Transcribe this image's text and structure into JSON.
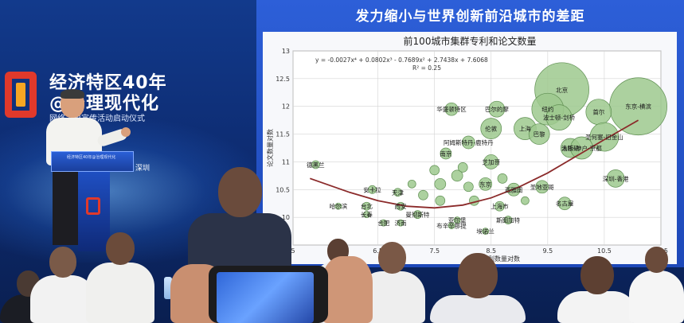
{
  "event": {
    "line1": "经济特区40年",
    "line2": "@治理现代化",
    "line3": "网络主题宣传活动启动仪式",
    "podium_label": "经济特区40年@治理现代化",
    "city": "深圳",
    "colors": {
      "brand_red": "#e0392b",
      "brand_orange": "#f6a623",
      "stage_blue": "#123a8c"
    }
  },
  "slide": {
    "title": "发力缩小与世界创新前沿城市的差距"
  },
  "chart_data": {
    "type": "scatter",
    "title": "前100城市集群专利和论文数量",
    "xlabel": "专利数量对数",
    "ylabel": "论文数量对数",
    "equation": "y = -0.0027x⁴ + 0.0802x³ - 0.7689x² + 2.7438x + 7.6068",
    "r2": "R² = 0.25",
    "xlim": [
      5,
      11.5
    ],
    "ylim": [
      9.5,
      13
    ],
    "xticks": [
      5,
      6.5,
      7.5,
      8.5,
      9.5,
      10.5,
      11.5
    ],
    "xtick_labels": [
      "5",
      "6.5",
      "7.5",
      "8.5",
      "9.5",
      "10.5",
      "11.5"
    ],
    "yticks": [
      9.5,
      10,
      10.5,
      11,
      11.5,
      12,
      12.5,
      13
    ],
    "ytick_labels": [
      "",
      "10",
      "10.5",
      "11",
      "11.5",
      "12",
      "12.5",
      "13"
    ],
    "grid": true,
    "bubble_color": "#9ec98e",
    "trend_color": "#8b2a2a",
    "trend": [
      {
        "x": 5.3,
        "y": 10.7
      },
      {
        "x": 6.0,
        "y": 10.45
      },
      {
        "x": 6.5,
        "y": 10.3
      },
      {
        "x": 7.0,
        "y": 10.2
      },
      {
        "x": 7.5,
        "y": 10.17
      },
      {
        "x": 8.0,
        "y": 10.22
      },
      {
        "x": 8.5,
        "y": 10.35
      },
      {
        "x": 9.0,
        "y": 10.55
      },
      {
        "x": 9.5,
        "y": 10.8
      },
      {
        "x": 10.0,
        "y": 11.1
      },
      {
        "x": 10.5,
        "y": 11.4
      },
      {
        "x": 11.1,
        "y": 11.75
      }
    ],
    "points": [
      {
        "label": "北京",
        "x": 9.75,
        "y": 12.3,
        "size": 34
      },
      {
        "label": "东京-横滨",
        "x": 11.1,
        "y": 12.0,
        "size": 36
      },
      {
        "label": "纽约",
        "x": 9.5,
        "y": 11.95,
        "size": 20
      },
      {
        "label": "首尔",
        "x": 10.4,
        "y": 11.9,
        "size": 16
      },
      {
        "label": "华盛顿特区",
        "x": 7.8,
        "y": 11.95,
        "size": 8
      },
      {
        "label": "巴尔的摩",
        "x": 8.6,
        "y": 11.95,
        "size": 10
      },
      {
        "label": "波士顿-剑桥",
        "x": 9.7,
        "y": 11.8,
        "size": 16
      },
      {
        "label": "伦敦",
        "x": 8.5,
        "y": 11.6,
        "size": 13
      },
      {
        "label": "上海",
        "x": 9.1,
        "y": 11.6,
        "size": 14
      },
      {
        "label": "巴黎",
        "x": 9.35,
        "y": 11.5,
        "size": 13
      },
      {
        "label": "圣何塞-旧金山",
        "x": 10.5,
        "y": 11.45,
        "size": 18
      },
      {
        "label": "阿姆斯特丹-鹿特丹",
        "x": 8.1,
        "y": 11.35,
        "size": 8
      },
      {
        "label": "洛杉矶",
        "x": 9.9,
        "y": 11.25,
        "size": 12
      },
      {
        "label": "大阪-神户-京都",
        "x": 10.1,
        "y": 11.25,
        "size": 14
      },
      {
        "label": "芝加哥",
        "x": 8.5,
        "y": 11.0,
        "size": 9
      },
      {
        "label": "南京",
        "x": 7.7,
        "y": 11.15,
        "size": 7
      },
      {
        "label": "德黑兰",
        "x": 5.4,
        "y": 10.95,
        "size": 5
      },
      {
        "label": "深圳-香港",
        "x": 10.7,
        "y": 10.7,
        "size": 11
      },
      {
        "label": "东京",
        "x": 8.4,
        "y": 10.6,
        "size": 8
      },
      {
        "label": "西雅图",
        "x": 8.9,
        "y": 10.5,
        "size": 8
      },
      {
        "label": "圣地亚哥",
        "x": 9.4,
        "y": 10.55,
        "size": 8
      },
      {
        "label": "名古屋",
        "x": 9.8,
        "y": 10.25,
        "size": 8
      },
      {
        "label": "安卡拉",
        "x": 6.4,
        "y": 10.5,
        "size": 5
      },
      {
        "label": "天津",
        "x": 6.85,
        "y": 10.45,
        "size": 5
      },
      {
        "label": "台北",
        "x": 6.3,
        "y": 10.2,
        "size": 5
      },
      {
        "label": "西安",
        "x": 6.9,
        "y": 10.2,
        "size": 5
      },
      {
        "label": "哈尔滨",
        "x": 5.8,
        "y": 10.2,
        "size": 4
      },
      {
        "label": "长春",
        "x": 6.3,
        "y": 10.05,
        "size": 4
      },
      {
        "label": "合肥",
        "x": 6.6,
        "y": 9.9,
        "size": 4
      },
      {
        "label": "济南",
        "x": 6.9,
        "y": 9.9,
        "size": 4
      },
      {
        "label": "曼彻斯特",
        "x": 7.2,
        "y": 10.05,
        "size": 5
      },
      {
        "label": "上海市",
        "x": 8.65,
        "y": 10.2,
        "size": 6
      },
      {
        "label": "斯图加特",
        "x": 8.8,
        "y": 9.95,
        "size": 5
      },
      {
        "label": "亚尔堡",
        "x": 7.9,
        "y": 9.95,
        "size": 4
      },
      {
        "label": "布辛辛那提",
        "x": 7.8,
        "y": 9.85,
        "size": 4
      },
      {
        "label": "埃诺兰",
        "x": 8.4,
        "y": 9.75,
        "size": 4
      },
      {
        "label": "",
        "x": 7.6,
        "y": 10.6,
        "size": 7
      },
      {
        "label": "",
        "x": 7.9,
        "y": 10.75,
        "size": 7
      },
      {
        "label": "",
        "x": 8.1,
        "y": 10.55,
        "size": 6
      },
      {
        "label": "",
        "x": 7.3,
        "y": 10.4,
        "size": 6
      },
      {
        "label": "",
        "x": 7.6,
        "y": 10.3,
        "size": 6
      },
      {
        "label": "",
        "x": 8.2,
        "y": 10.3,
        "size": 6
      },
      {
        "label": "",
        "x": 7.1,
        "y": 10.6,
        "size": 5
      },
      {
        "label": "",
        "x": 8.7,
        "y": 10.7,
        "size": 6
      },
      {
        "label": "",
        "x": 9.1,
        "y": 10.3,
        "size": 5
      },
      {
        "label": "",
        "x": 7.5,
        "y": 10.85,
        "size": 6
      },
      {
        "label": "",
        "x": 8.0,
        "y": 10.9,
        "size": 6
      }
    ]
  }
}
